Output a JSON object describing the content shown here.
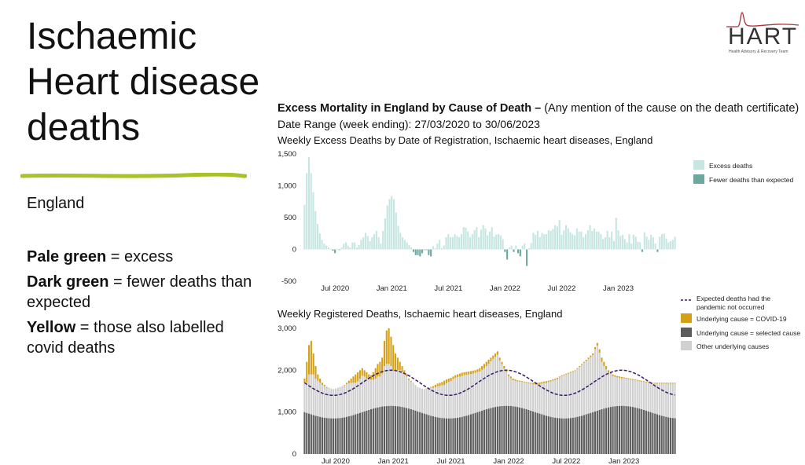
{
  "slide": {
    "title_lines": [
      "Ischaemic",
      "Heart disease",
      "deaths"
    ],
    "region": "England",
    "notes": [
      {
        "bold": "Pale green",
        "rest": " = excess"
      },
      {
        "bold": "Dark green",
        "rest": " = fewer deaths than expected"
      },
      {
        "bold": "Yellow",
        "rest": " = those also labelled covid deaths"
      }
    ]
  },
  "logo": {
    "text": "HART",
    "subtitle": "Health Advisory & Recovery Team"
  },
  "header": {
    "title_bold": "Excess Mortality in England by Cause of Death –",
    "title_rest": " (Any mention of the cause on the death certificate)",
    "date_range": "Date Range (week ending): 27/03/2020 to 30/06/2023"
  },
  "colors": {
    "excess": "#c6e6e2",
    "fewer": "#6aa8a0",
    "covid": "#d4a017",
    "selected": "#5c5c5c",
    "other": "#d0d0d0",
    "expected": "#3a1a6e",
    "title_underline": "#a9c12a"
  },
  "chart_data": [
    {
      "type": "bar",
      "title": "Weekly Excess Deaths by Date of Registration, Ischaemic heart diseases, England",
      "x_tick_labels": [
        "Jul 2020",
        "Jan 2021",
        "Jul 2021",
        "Jan 2022",
        "Jul 2022",
        "Jan 2023"
      ],
      "x_tick_weeks": [
        14,
        40,
        66,
        92,
        118,
        144
      ],
      "y_ticks": [
        -500,
        0,
        500,
        1000,
        1500
      ],
      "y_tick_labels": [
        "-500",
        "0",
        "500",
        "1,000",
        "1,500"
      ],
      "ylim": [
        -500,
        1500
      ],
      "legend": [
        {
          "name": "Excess deaths"
        },
        {
          "name": "Fewer deaths than expected"
        }
      ],
      "x": "weeks 1 to 171, week ending 27/03/2020 to 30/06/2023",
      "values": [
        700,
        1200,
        1450,
        1200,
        900,
        600,
        400,
        250,
        150,
        90,
        60,
        30,
        10,
        -20,
        -60,
        10,
        -10,
        30,
        90,
        110,
        60,
        30,
        110,
        110,
        30,
        70,
        150,
        190,
        260,
        210,
        130,
        190,
        240,
        290,
        190,
        90,
        290,
        490,
        690,
        790,
        840,
        790,
        580,
        370,
        260,
        190,
        150,
        110,
        70,
        30,
        -40,
        -90,
        -90,
        -110,
        -60,
        -10,
        -10,
        -90,
        -110,
        50,
        20,
        90,
        150,
        20,
        60,
        190,
        240,
        190,
        190,
        240,
        210,
        190,
        240,
        350,
        340,
        280,
        190,
        240,
        300,
        350,
        190,
        310,
        380,
        330,
        220,
        280,
        350,
        200,
        230,
        240,
        220,
        160,
        -40,
        -160,
        30,
        60,
        -40,
        60,
        -60,
        -110,
        60,
        90,
        -260,
        20,
        100,
        260,
        230,
        290,
        190,
        260,
        240,
        240,
        300,
        290,
        320,
        380,
        360,
        460,
        230,
        300,
        380,
        330,
        270,
        240,
        220,
        330,
        280,
        280,
        190,
        240,
        300,
        380,
        290,
        330,
        280,
        280,
        240,
        160,
        190,
        290,
        190,
        280,
        130,
        500,
        300,
        210,
        230,
        160,
        110,
        240,
        90,
        230,
        200,
        120,
        110,
        -40,
        270,
        200,
        150,
        230,
        190,
        90,
        -40,
        200,
        240,
        250,
        170,
        110,
        130,
        150,
        200
      ]
    },
    {
      "type": "bar",
      "title": "Weekly Registered Deaths, Ischaemic heart diseases, England",
      "x_tick_labels": [
        "Jul 2020",
        "Jan 2021",
        "Jul 2021",
        "Jan 2022",
        "Jul 2022",
        "Jan 2023"
      ],
      "x_tick_weeks": [
        14,
        40,
        66,
        92,
        118,
        144
      ],
      "y_ticks": [
        0,
        1000,
        2000,
        3000
      ],
      "y_tick_labels": [
        "0",
        "1,000",
        "2,000",
        "3,000"
      ],
      "ylim": [
        0,
        3300
      ],
      "legend": [
        {
          "name": "Expected deaths had the pandemic not occurred",
          "lines": [
            "Expected deaths had the",
            "pandemic not occurred"
          ]
        },
        {
          "name": "Underlying cause  = COVID-19"
        },
        {
          "name": "Underlying cause = selected cause"
        },
        {
          "name": "Other underlying causes"
        }
      ],
      "series": [
        {
          "name": "Underlying cause = selected cause",
          "base": 1000,
          "amp": 150,
          "period": 52,
          "peak_week": 40
        },
        {
          "name": "Underlying cause  = COVID-19",
          "values": [
            100,
            500,
            700,
            800,
            500,
            300,
            150,
            100,
            50,
            30,
            20,
            10,
            0,
            0,
            0,
            0,
            0,
            0,
            10,
            30,
            60,
            100,
            150,
            200,
            220,
            200,
            180,
            150,
            150,
            120,
            100,
            180,
            250,
            300,
            350,
            380,
            600,
            800,
            850,
            700,
            600,
            400,
            300,
            200,
            150,
            100,
            50,
            30,
            20,
            10,
            0,
            0,
            0,
            0,
            0,
            10,
            10,
            20,
            40,
            60,
            60,
            80,
            80,
            100,
            90,
            80,
            80,
            60,
            60,
            60,
            70,
            80,
            70,
            70,
            70,
            70,
            70,
            60,
            60,
            80,
            90,
            100,
            100,
            100,
            90,
            80,
            80,
            80,
            60,
            60,
            60,
            40,
            40,
            40,
            40,
            30,
            30,
            20,
            20,
            20,
            20,
            20,
            20,
            30,
            40,
            40,
            50,
            40,
            40,
            40,
            30,
            30,
            30,
            30,
            30,
            20,
            20,
            20,
            20,
            20,
            20,
            20,
            20,
            20,
            20,
            20,
            20,
            30,
            30,
            40,
            40,
            50,
            60,
            80,
            100,
            100,
            80,
            60,
            40,
            40,
            40,
            30,
            30,
            30,
            20,
            20,
            20,
            20,
            20,
            20,
            20,
            20,
            20,
            20,
            20,
            20,
            20,
            20,
            20,
            20,
            20,
            20,
            20,
            20,
            20,
            20,
            20,
            20,
            20,
            20,
            20
          ]
        },
        {
          "name": "Expected deaths had the pandemic not occurred",
          "base": 1700,
          "amp": 300,
          "period": 52,
          "peak_week": 40
        }
      ],
      "total_values": [
        1800,
        2200,
        2600,
        2700,
        2400,
        2100,
        1900,
        1800,
        1700,
        1650,
        1600,
        1580,
        1560,
        1550,
        1560,
        1580,
        1600,
        1620,
        1650,
        1700,
        1750,
        1800,
        1850,
        1900,
        1950,
        2000,
        2050,
        2000,
        1950,
        1900,
        1880,
        1950,
        2050,
        2150,
        2200,
        2300,
        2700,
        2950,
        3000,
        2800,
        2600,
        2400,
        2300,
        2200,
        2100,
        2000,
        1900,
        1800,
        1750,
        1700,
        1650,
        1600,
        1580,
        1560,
        1550,
        1560,
        1580,
        1600,
        1620,
        1650,
        1680,
        1700,
        1720,
        1750,
        1780,
        1800,
        1820,
        1850,
        1880,
        1900,
        1920,
        1940,
        1950,
        1960,
        1970,
        1980,
        1990,
        2000,
        2020,
        2050,
        2100,
        2150,
        2200,
        2250,
        2300,
        2350,
        2400,
        2450,
        2300,
        2200,
        2100,
        2000,
        1900,
        1850,
        1800,
        1780,
        1760,
        1750,
        1740,
        1730,
        1720,
        1710,
        1700,
        1700,
        1700,
        1700,
        1710,
        1720,
        1730,
        1740,
        1750,
        1760,
        1780,
        1800,
        1820,
        1850,
        1880,
        1900,
        1920,
        1940,
        1960,
        1980,
        2000,
        2050,
        2100,
        2150,
        2200,
        2250,
        2300,
        2350,
        2400,
        2550,
        2650,
        2500,
        2300,
        2200,
        2100,
        2000,
        1950,
        1900,
        1880,
        1860,
        1850,
        1840,
        1830,
        1820,
        1810,
        1800,
        1790,
        1780,
        1770,
        1760,
        1750,
        1740,
        1730,
        1720,
        1710,
        1700,
        1700,
        1700,
        1700,
        1700,
        1700,
        1700,
        1700,
        1700,
        1700,
        1700
      ]
    }
  ]
}
